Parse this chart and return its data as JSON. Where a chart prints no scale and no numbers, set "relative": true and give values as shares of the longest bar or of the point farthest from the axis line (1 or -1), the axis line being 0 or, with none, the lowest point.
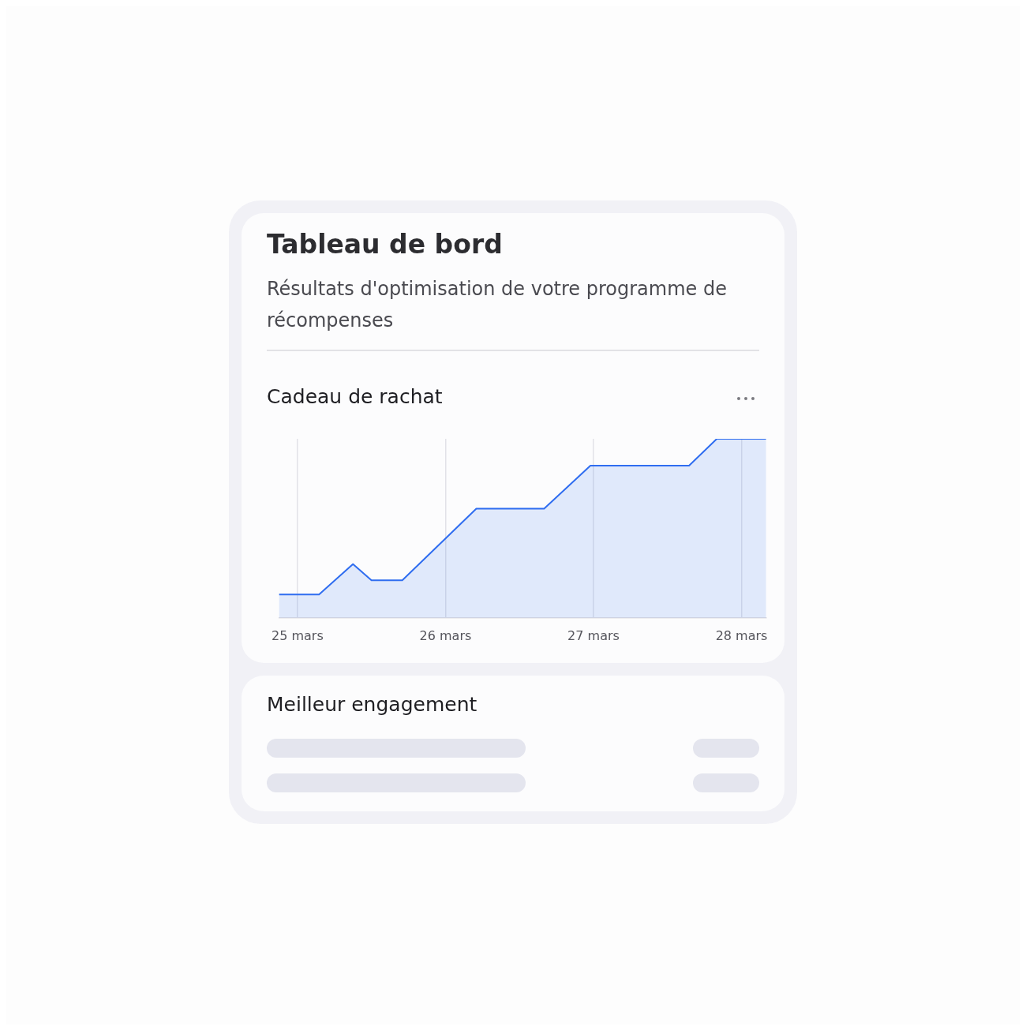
{
  "chart_data": {
    "type": "area",
    "title": "Tableau de bord",
    "subtitle": "Résultats d'optimisation de votre programme de récompenses",
    "annotations": [
      "Cadeau de rachat",
      "Meilleur engagement"
    ],
    "relative": true,
    "x": [
      "--03-24T21:00",
      "--03-25T03:30",
      "--03-25T09:00",
      "--03-25T12:00",
      "--03-25T17:00",
      "--03-26T05:00",
      "--03-26T16:00",
      "--03-26T23:30",
      "--03-27T15:30",
      "--03-27T20:00",
      "--03-28T04:00"
    ],
    "xlim": [
      "--03-24T21:00",
      "--03-28T04:00"
    ],
    "xticks": [
      {
        "value": "--03-25",
        "label": "25 mars"
      },
      {
        "value": "--03-26",
        "label": "26 mars"
      },
      {
        "value": "--03-27",
        "label": "27 mars"
      },
      {
        "value": "--03-28",
        "label": "28 mars"
      }
    ],
    "series": [
      {
        "color": "#2f6df0",
        "values": [
          0.13,
          0.13,
          0.3,
          0.21,
          0.21,
          0.61,
          0.61,
          0.85,
          0.85,
          1,
          1
        ]
      }
    ],
    "grid": "x",
    "legend": false
  }
}
